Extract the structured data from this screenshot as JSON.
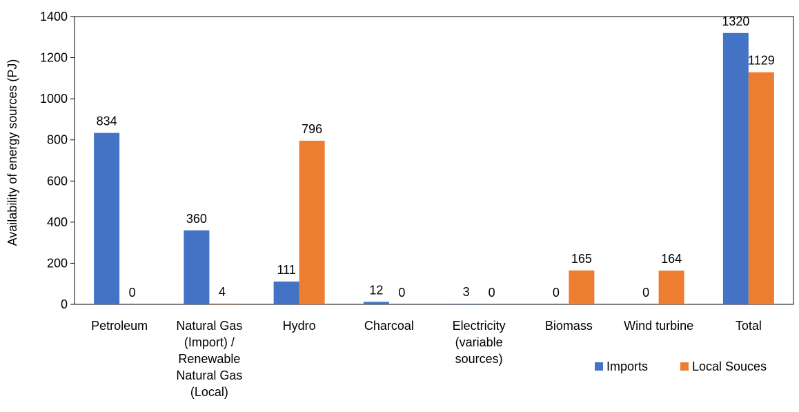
{
  "chart_data": {
    "type": "bar",
    "title": "",
    "xlabel": "",
    "ylabel": "Availability of energy sources (PJ)",
    "ylim": [
      0,
      1400
    ],
    "yticks": [
      0,
      200,
      400,
      600,
      800,
      1000,
      1200,
      1400
    ],
    "grid": false,
    "legend_position": "bottom-right",
    "categories": [
      [
        "Petroleum"
      ],
      [
        "Natural Gas",
        "(Import) /",
        "Renewable",
        "Natural Gas",
        "(Local)"
      ],
      [
        "Hydro"
      ],
      [
        "Charcoal"
      ],
      [
        "Electricity",
        "(variable",
        "sources)"
      ],
      [
        "Biomass"
      ],
      [
        "Wind turbine"
      ],
      [
        "Total"
      ]
    ],
    "series": [
      {
        "name": "Imports",
        "color": "#4472C4",
        "values": [
          834,
          360,
          111,
          12,
          3,
          0,
          0,
          1320
        ]
      },
      {
        "name": "Local Souces",
        "color": "#ED7D31",
        "values": [
          0,
          4,
          796,
          0,
          0,
          165,
          164,
          1129
        ]
      }
    ]
  }
}
